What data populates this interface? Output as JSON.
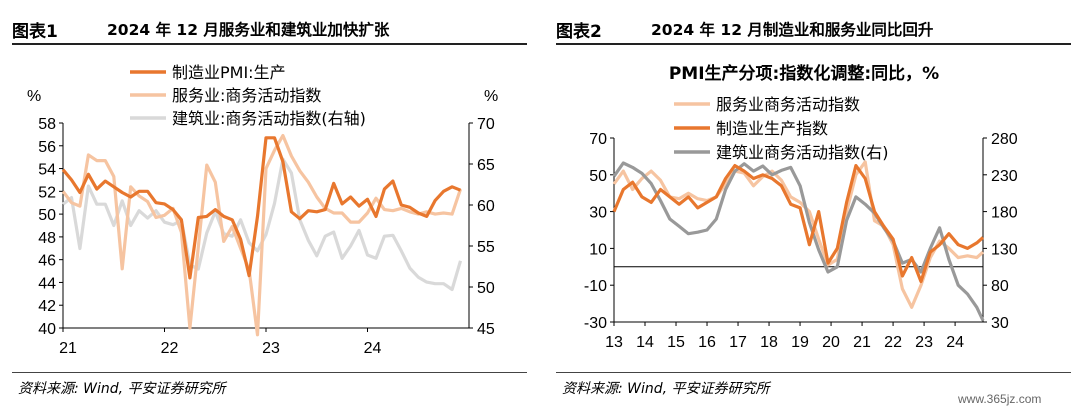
{
  "panel1": {
    "figure_no": "图表1",
    "title": "2024 年 12 月服务业和建筑业加快扩张",
    "source": "资料来源: Wind, 平安证券研究所"
  },
  "panel2": {
    "figure_no": "图表2",
    "title": "2024 年 12 月制造业和服务业同比回升",
    "source": "资料来源: Wind, 平安证券研究所"
  },
  "watermark": "www.365jz.com",
  "chart_data": [
    {
      "type": "line",
      "title": "",
      "ylabel_left": "%",
      "ylabel_right": "%",
      "ylim_left": [
        40,
        58
      ],
      "ylim_right": [
        45,
        70
      ],
      "yticks_left": [
        "40",
        "42",
        "44",
        "46",
        "48",
        "50",
        "52",
        "54",
        "56",
        "58"
      ],
      "yticks_right": [
        "45",
        "50",
        "55",
        "60",
        "65",
        "70"
      ],
      "xlim": [
        0,
        48
      ],
      "xticks": [
        {
          "pos": 0,
          "label": "21"
        },
        {
          "pos": 12,
          "label": "22"
        },
        {
          "pos": 24,
          "label": "23"
        },
        {
          "pos": 36,
          "label": "24"
        }
      ],
      "legend_position": "top-center",
      "series": [
        {
          "name": "制造业PMI:生产",
          "axis": "left",
          "color": "#E8772E",
          "values": [
            53.9,
            53.0,
            51.9,
            53.5,
            52.2,
            52.9,
            52.4,
            51.9,
            51.5,
            52.0,
            52.0,
            51.0,
            50.9,
            50.4,
            49.5,
            44.4,
            49.7,
            49.8,
            50.4,
            49.8,
            49.5,
            47.8,
            44.6,
            49.8,
            56.7,
            56.7,
            54.6,
            50.2,
            49.6,
            50.3,
            50.2,
            50.4,
            52.7,
            50.9,
            51.5,
            50.7,
            51.3,
            49.8,
            52.2,
            52.9,
            50.8,
            50.6,
            50.1,
            49.8,
            51.2,
            52.0,
            52.4,
            52.1
          ]
        },
        {
          "name": "服务业:商务活动指数",
          "axis": "left",
          "color": "#F6C4A1",
          "values": [
            52.0,
            51.0,
            50.7,
            55.2,
            54.7,
            54.7,
            53.3,
            45.2,
            52.4,
            51.6,
            51.1,
            49.7,
            49.9,
            50.5,
            48.4,
            40.0,
            47.1,
            54.3,
            52.8,
            47.6,
            48.9,
            47.0,
            45.1,
            39.4,
            54.0,
            55.6,
            56.9,
            55.1,
            53.8,
            52.8,
            51.5,
            50.5,
            50.1,
            50.1,
            49.3,
            49.3,
            50.1,
            51.4,
            50.4,
            50.3,
            50.5,
            50.2,
            50.0,
            50.2,
            50.0,
            50.1,
            50.0,
            52.2
          ]
        },
        {
          "name": "建筑业:商务活动指数(右轴)",
          "axis": "right",
          "color": "#D9D9D9",
          "values": [
            60.1,
            60.9,
            54.7,
            62.3,
            60.1,
            60.1,
            57.5,
            60.5,
            57.5,
            59.3,
            58.4,
            59.3,
            57.9,
            57.6,
            58.1,
            52.7,
            52.2,
            56.6,
            59.2,
            56.5,
            56.2,
            58.2,
            55.4,
            54.4,
            56.4,
            60.2,
            65.6,
            63.9,
            58.2,
            55.7,
            53.8,
            56.2,
            56.7,
            53.5,
            55.0,
            56.9,
            53.9,
            53.5,
            56.2,
            56.3,
            54.4,
            52.3,
            51.2,
            50.6,
            50.4,
            50.4,
            49.7,
            53.2
          ]
        }
      ]
    },
    {
      "type": "line",
      "title": "PMI生产分项:指数化调整:同比，%",
      "ylim_left": [
        -30,
        70
      ],
      "ylim_right": [
        30,
        280
      ],
      "yticks_left": [
        "-30",
        "-10",
        "10",
        "30",
        "50",
        "70"
      ],
      "yticks_right": [
        "30",
        "80",
        "130",
        "180",
        "230",
        "280"
      ],
      "xlim": [
        13,
        24.9
      ],
      "xticks": [
        {
          "pos": 13,
          "label": "13"
        },
        {
          "pos": 14,
          "label": "14"
        },
        {
          "pos": 15,
          "label": "15"
        },
        {
          "pos": 16,
          "label": "16"
        },
        {
          "pos": 17,
          "label": "17"
        },
        {
          "pos": 18,
          "label": "18"
        },
        {
          "pos": 19,
          "label": "19"
        },
        {
          "pos": 20,
          "label": "20"
        },
        {
          "pos": 21,
          "label": "21"
        },
        {
          "pos": 22,
          "label": "22"
        },
        {
          "pos": 23,
          "label": "23"
        },
        {
          "pos": 24,
          "label": "24"
        }
      ],
      "legend_position": "top-center",
      "series": [
        {
          "name": "服务业商务活动指数",
          "axis": "left",
          "color": "#F6C4A1",
          "x": [
            13.0,
            13.3,
            13.6,
            13.9,
            14.2,
            14.5,
            14.8,
            15.1,
            15.4,
            15.7,
            16.0,
            16.3,
            16.6,
            16.9,
            17.2,
            17.5,
            17.8,
            18.1,
            18.4,
            18.7,
            19.0,
            19.3,
            19.6,
            19.9,
            20.2,
            20.5,
            20.8,
            21.1,
            21.4,
            21.7,
            22.0,
            22.3,
            22.6,
            22.9,
            23.2,
            23.5,
            23.8,
            24.1,
            24.4,
            24.7,
            24.9
          ],
          "values": [
            45,
            52,
            42,
            48,
            52,
            47,
            38,
            37,
            40,
            37,
            36,
            38,
            45,
            52,
            51,
            44,
            49,
            52,
            47,
            38,
            35,
            30,
            15,
            1,
            4,
            30,
            50,
            57,
            25,
            22,
            12,
            -12,
            -22,
            -10,
            5,
            14,
            10,
            5,
            6,
            5,
            8
          ]
        },
        {
          "name": "制造业生产指数",
          "axis": "left",
          "color": "#E8772E",
          "x": [
            13.0,
            13.3,
            13.6,
            13.9,
            14.2,
            14.5,
            14.8,
            15.1,
            15.4,
            15.7,
            16.0,
            16.3,
            16.6,
            16.9,
            17.2,
            17.5,
            17.8,
            18.1,
            18.4,
            18.7,
            19.0,
            19.3,
            19.6,
            19.9,
            20.2,
            20.5,
            20.8,
            21.1,
            21.4,
            21.7,
            22.0,
            22.3,
            22.6,
            22.9,
            23.2,
            23.5,
            23.8,
            24.1,
            24.4,
            24.7,
            24.9
          ],
          "values": [
            30,
            42,
            46,
            38,
            35,
            42,
            38,
            34,
            38,
            32,
            35,
            38,
            48,
            55,
            52,
            48,
            50,
            48,
            44,
            34,
            32,
            12,
            30,
            2,
            10,
            35,
            55,
            48,
            30,
            22,
            15,
            -5,
            5,
            -8,
            8,
            12,
            18,
            12,
            10,
            13,
            16
          ]
        },
        {
          "name": "建筑业商务活动指数(右)",
          "axis": "right",
          "color": "#999999",
          "x": [
            13.0,
            13.3,
            13.6,
            13.9,
            14.2,
            14.5,
            14.8,
            15.1,
            15.4,
            15.7,
            16.0,
            16.3,
            16.6,
            16.9,
            17.2,
            17.5,
            17.8,
            18.1,
            18.4,
            18.7,
            19.0,
            19.3,
            19.6,
            19.9,
            20.2,
            20.5,
            20.8,
            21.1,
            21.4,
            21.7,
            22.0,
            22.3,
            22.6,
            22.9,
            23.2,
            23.5,
            23.8,
            24.1,
            24.4,
            24.7,
            24.9
          ],
          "values": [
            228,
            246,
            240,
            232,
            218,
            195,
            170,
            160,
            150,
            152,
            155,
            170,
            210,
            235,
            245,
            235,
            242,
            230,
            236,
            240,
            215,
            165,
            128,
            98,
            105,
            168,
            200,
            190,
            178,
            158,
            140,
            110,
            115,
            98,
            130,
            158,
            115,
            80,
            68,
            50,
            32
          ]
        }
      ]
    }
  ]
}
